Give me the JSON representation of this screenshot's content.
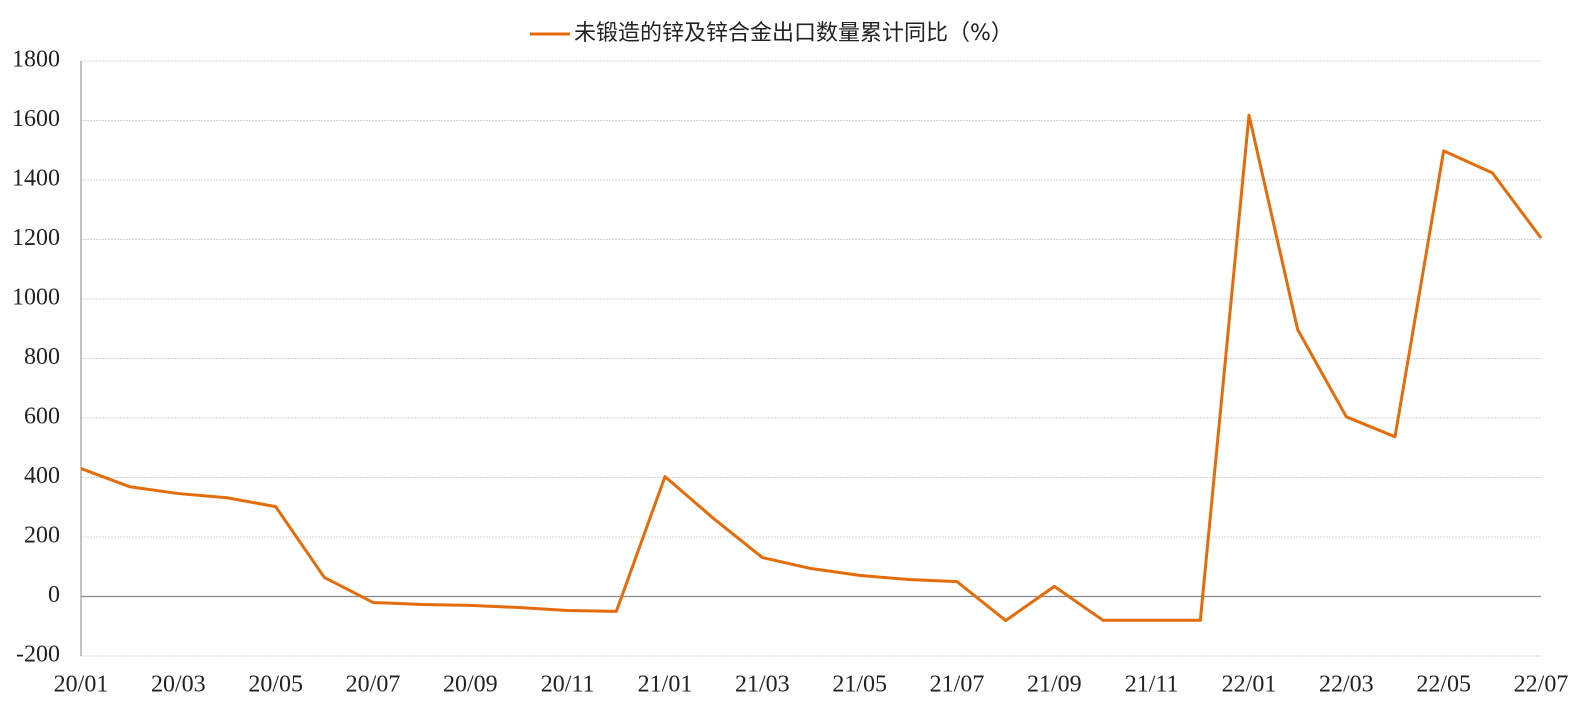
{
  "chart_data": {
    "type": "line",
    "categories": [
      "20/01",
      null,
      "20/03",
      null,
      "20/05",
      null,
      "20/07",
      null,
      "20/09",
      null,
      "20/11",
      null,
      "21/01",
      null,
      "21/03",
      null,
      "21/05",
      null,
      "21/07",
      null,
      "21/09",
      null,
      "21/11",
      null,
      "22/01",
      null,
      "22/03",
      null,
      "22/05",
      null,
      "22/07"
    ],
    "series": [
      {
        "name": "未锻造的锌及锌合金出口数量累计同比（%）",
        "color": "#e46c0a",
        "values": [
          430,
          369,
          346,
          332,
          302,
          64,
          -20,
          -27,
          -30,
          -37,
          -47,
          -50,
          403,
          262,
          131,
          94,
          71,
          57,
          50,
          -81,
          34,
          -80,
          -80,
          -80,
          1618,
          897,
          604,
          537,
          1498,
          1424,
          1205
        ]
      }
    ],
    "ylim": [
      -200,
      1800
    ],
    "yticks": [
      -200,
      0,
      200,
      400,
      600,
      800,
      1000,
      1200,
      1400,
      1600,
      1800
    ],
    "grid": true,
    "legend": "top"
  }
}
